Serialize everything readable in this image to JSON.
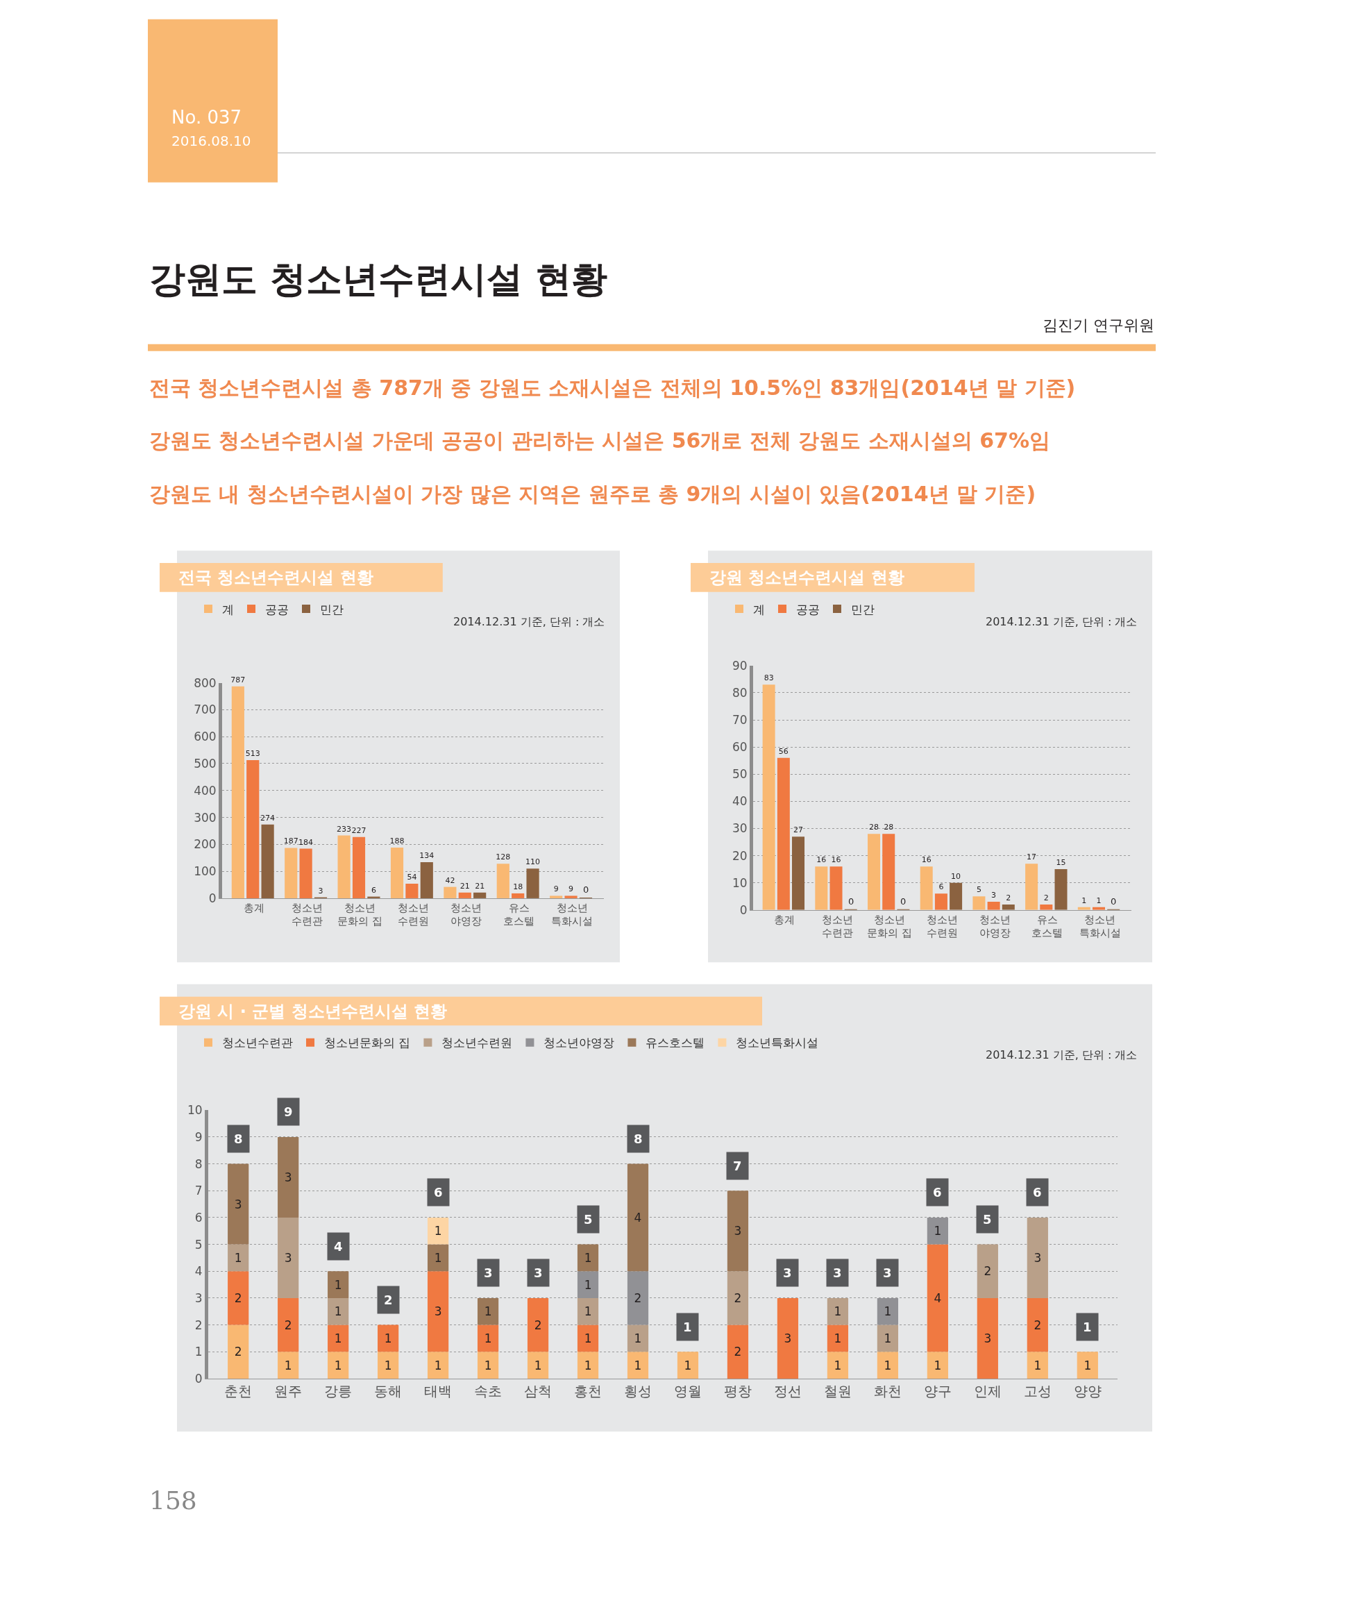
{
  "chart_data": [
    {
      "type": "other",
      "title": "강원도 청소년수련시설 현황",
      "annotations": [
        "No. 037",
        "2016.08.10",
        "김진기 연구위원",
        "전국 청소년수련시설 총 787개 중 강원도 소재시설은 전체의 10.5%인 83개임(2014년 말 기준)",
        "강원도 청소년수련시설 가운데 공공이 관리하는 시설은 56개로 전체 강원도 소재시설의 67%임",
        "강원도 내 청소년수련시설이 가장 많은 지역은 원주로 총 9개의 시설이 있음(2014년 말 기준)",
        "158"
      ]
    },
    {
      "type": "bar",
      "title": "전국 청소년수련시설 현황",
      "annotations": [
        "2014.12.31 기준, 단위 : 개소"
      ],
      "categories": [
        "총계",
        "청소년\n수련관",
        "청소년\n문화의 집",
        "청소년\n수련원",
        "청소년\n야영장",
        "유스\n호스텔",
        "청소년\n특화시설"
      ],
      "series": [
        {
          "name": "계",
          "color": "#f9b872",
          "values": [
            787,
            187,
            233,
            188,
            42,
            128,
            9
          ]
        },
        {
          "name": "공공",
          "color": "#f07941",
          "values": [
            513,
            184,
            227,
            54,
            21,
            18,
            9
          ]
        },
        {
          "name": "민간",
          "color": "#8b6240",
          "values": [
            274,
            3,
            6,
            134,
            21,
            110,
            0
          ]
        }
      ],
      "ylim": [
        0,
        800
      ],
      "yticks": [
        0,
        100,
        200,
        300,
        400,
        500,
        600,
        700,
        800
      ],
      "grid": "y",
      "legend": "top left",
      "data_labels": true
    },
    {
      "type": "bar",
      "title": "강원 청소년수련시설 현황",
      "annotations": [
        "2014.12.31 기준, 단위 : 개소"
      ],
      "categories": [
        "총계",
        "청소년\n수련관",
        "청소년\n문화의 집",
        "청소년\n수련원",
        "청소년\n야영장",
        "유스\n호스텔",
        "청소년\n특화시설"
      ],
      "series": [
        {
          "name": "계",
          "color": "#f9b872",
          "values": [
            83,
            16,
            28,
            16,
            5,
            17,
            1
          ]
        },
        {
          "name": "공공",
          "color": "#f07941",
          "values": [
            56,
            16,
            28,
            6,
            3,
            2,
            1
          ]
        },
        {
          "name": "민간",
          "color": "#8b6240",
          "values": [
            27,
            0,
            0,
            10,
            2,
            15,
            0
          ]
        }
      ],
      "ylim": [
        0,
        90
      ],
      "yticks": [
        0,
        10,
        20,
        30,
        40,
        50,
        60,
        70,
        80,
        90
      ],
      "grid": "y",
      "legend": "top left",
      "data_labels": true
    },
    {
      "type": "bar",
      "title": "강원 시 · 군별 청소년수련시설 현황",
      "annotations": [
        "2014.12.31 기준, 단위 : 개소"
      ],
      "categories": [
        "춘천",
        "원주",
        "강릉",
        "동해",
        "태백",
        "속초",
        "삼척",
        "홍천",
        "횡성",
        "영월",
        "평창",
        "정선",
        "철원",
        "화천",
        "양구",
        "인제",
        "고성",
        "양양"
      ],
      "stacked": true,
      "series": [
        {
          "name": "청소년수련관",
          "color": "#f9b872",
          "values": [
            2,
            1,
            1,
            1,
            1,
            1,
            1,
            1,
            1,
            1,
            null,
            null,
            1,
            1,
            1,
            null,
            1,
            1
          ]
        },
        {
          "name": "청소년문화의 집",
          "color": "#f07941",
          "values": [
            2,
            2,
            1,
            1,
            3,
            1,
            2,
            1,
            null,
            null,
            2,
            3,
            1,
            null,
            4,
            3,
            2,
            null
          ]
        },
        {
          "name": "청소년수련원",
          "color": "#b9a089",
          "values": [
            1,
            3,
            1,
            null,
            null,
            null,
            null,
            1,
            1,
            null,
            2,
            null,
            1,
            1,
            null,
            2,
            3,
            null
          ]
        },
        {
          "name": "청소년야영장",
          "color": "#919195",
          "values": [
            null,
            null,
            null,
            null,
            null,
            null,
            null,
            1,
            2,
            null,
            null,
            null,
            null,
            1,
            1,
            null,
            null,
            null
          ]
        },
        {
          "name": "유스호스텔",
          "color": "#9b7858",
          "values": [
            3,
            3,
            1,
            null,
            1,
            1,
            null,
            1,
            4,
            null,
            3,
            null,
            null,
            null,
            null,
            null,
            null,
            null
          ]
        },
        {
          "name": "청소년특화시설",
          "color": "#fdd5a4",
          "values": [
            null,
            null,
            null,
            null,
            1,
            null,
            null,
            null,
            null,
            null,
            null,
            null,
            null,
            null,
            null,
            null,
            null,
            null
          ]
        }
      ],
      "totals": [
        "8",
        "9",
        "4",
        "2",
        "6",
        "3",
        "3",
        "5",
        "8",
        "1",
        "7",
        "3",
        "3",
        "3",
        "6",
        "5",
        "6",
        "1"
      ],
      "ylim": [
        0,
        10
      ],
      "yticks": [
        0,
        1,
        2,
        3,
        4,
        5,
        6,
        7,
        8,
        9,
        10
      ],
      "grid": "y",
      "legend": "top left",
      "data_labels": true
    }
  ]
}
